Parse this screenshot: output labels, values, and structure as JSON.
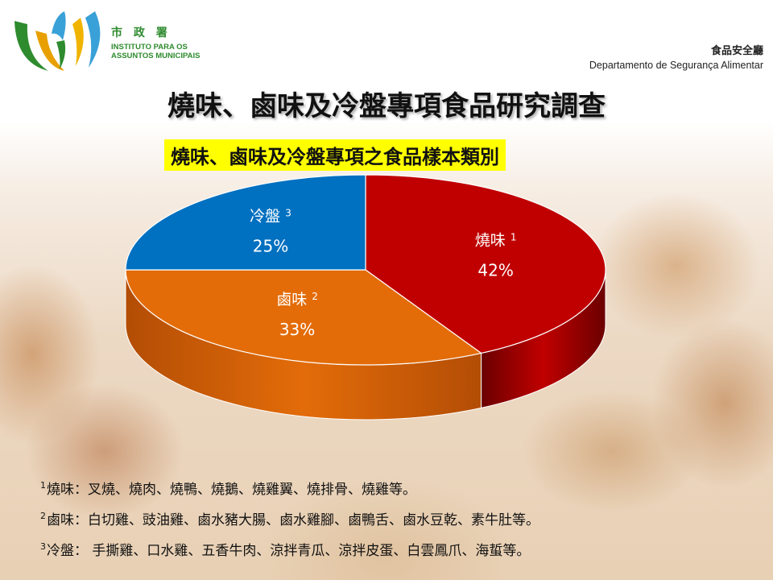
{
  "header": {
    "logo_cn": "市 政 署",
    "logo_pt_line1": "INSTITUTO PARA OS",
    "logo_pt_line2": "ASSUNTOS MUNICIPAIS",
    "dept_cn": "食品安全廳",
    "dept_pt": "Departamento de Segurança Alimentar"
  },
  "title": "燒味、鹵味及冷盤專項食品研究調查",
  "chart_data": {
    "type": "pie",
    "title": "燒味、鹵味及冷盤專項之食品樣本類別",
    "slices": [
      {
        "label": "燒味",
        "note": "1",
        "value": 42,
        "value_label": "42%",
        "color": "#c00000",
        "side_color": "#6b0000"
      },
      {
        "label": "鹵味",
        "note": "2",
        "value": 33,
        "value_label": "33%",
        "color": "#e36c09",
        "side_color": "#b34d05"
      },
      {
        "label": "冷盤",
        "note": "3",
        "value": 25,
        "value_label": "25%",
        "color": "#0070c0",
        "side_color": "#004a80"
      }
    ]
  },
  "notes": [
    {
      "mark": "1",
      "text": "燒味：叉燒、燒肉、燒鴨、燒鵝、燒雞翼、燒排骨、燒雞等。"
    },
    {
      "mark": "2",
      "text": "鹵味：白切雞、豉油雞、鹵水豬大腸、鹵水雞腳、鹵鴨舌、鹵水豆乾、素牛肚等。"
    },
    {
      "mark": "3",
      "text": "冷盤： 手撕雞、口水雞、五香牛肉、涼拌青瓜、涼拌皮蛋、白雲鳳爪、海蜇等。"
    }
  ]
}
